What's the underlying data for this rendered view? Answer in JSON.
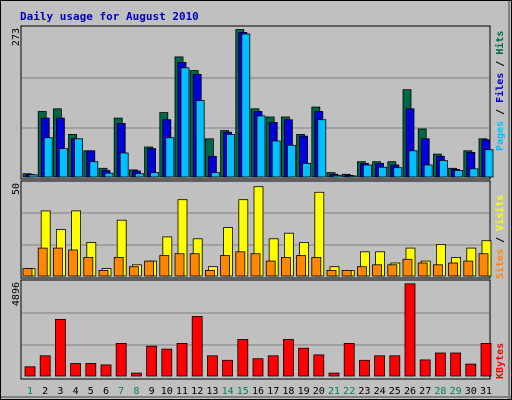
{
  "title": "Daily usage for August 2010",
  "colors": {
    "hits": "#006848",
    "files": "#0000d8",
    "pages": "#00c0ff",
    "visits": "#ffff00",
    "sites": "#ff8800",
    "kbytes": "#ff0000",
    "weekday": "#000000",
    "weekend": "#00805c"
  },
  "chart_data": {
    "type": "bar",
    "categories": [
      "1",
      "2",
      "3",
      "4",
      "5",
      "6",
      "7",
      "8",
      "9",
      "10",
      "11",
      "12",
      "13",
      "14",
      "15",
      "16",
      "17",
      "18",
      "19",
      "20",
      "21",
      "22",
      "23",
      "24",
      "25",
      "26",
      "27",
      "28",
      "29",
      "30",
      "31"
    ],
    "weekend_days": [
      "1",
      "7",
      "8",
      "14",
      "15",
      "21",
      "22",
      "28",
      "29"
    ],
    "panels": [
      {
        "name": "top",
        "ymax": "273",
        "ylim": [
          0,
          273
        ],
        "side_label": {
          "hits": "Hits",
          "files": "Files",
          "pages": "Pages",
          "sep": " / "
        },
        "series": [
          {
            "name": "Hits",
            "values": [
              6,
              120,
              125,
              78,
              48,
              16,
              108,
              13,
              55,
              118,
              220,
              195,
              70,
              85,
              270,
              125,
              110,
              110,
              78,
              128,
              8,
              5,
              28,
              28,
              28,
              160,
              88,
              42,
              16,
              48,
              70
            ]
          },
          {
            "name": "Files",
            "values": [
              5,
              108,
              108,
              70,
              48,
              12,
              98,
              11,
              52,
              105,
              210,
              188,
              38,
              82,
              265,
              120,
              100,
              105,
              75,
              120,
              5,
              3,
              25,
              25,
              22,
              125,
              70,
              38,
              14,
              45,
              68
            ]
          },
          {
            "name": "Pages",
            "values": [
              4,
              72,
              52,
              70,
              28,
              7,
              44,
              6,
              8,
              72,
              200,
              140,
              8,
              78,
              262,
              112,
              66,
              58,
              25,
              105,
              3,
              2,
              22,
              18,
              17,
              48,
              22,
              30,
              12,
              15,
              50
            ]
          }
        ]
      },
      {
        "name": "middle",
        "ymax": "50",
        "ylim": [
          0,
          50
        ],
        "side_label": {
          "visits": "Visits",
          "sites": "Sites",
          "sep": " / "
        },
        "series": [
          {
            "name": "Visits",
            "values": [
              4,
              35,
              25,
              35,
              18,
              4,
              30,
              6,
              8,
              21,
              41,
              20,
              5,
              26,
              41,
              48,
              20,
              23,
              18,
              45,
              5,
              3,
              13,
              13,
              7,
              15,
              8,
              17,
              10,
              15,
              19
            ]
          },
          {
            "name": "Sites",
            "values": [
              4,
              15,
              15,
              14,
              10,
              3,
              10,
              5,
              8,
              11,
              12,
              12,
              3,
              11,
              13,
              12,
              8,
              10,
              11,
              10,
              3,
              3,
              5,
              6,
              6,
              9,
              7,
              6,
              7,
              8,
              12
            ]
          }
        ]
      },
      {
        "name": "bottom",
        "ymax": "4896",
        "ylim": [
          0,
          4896
        ],
        "side_label": {
          "kbytes": "KBytes"
        },
        "series": [
          {
            "name": "KBytes",
            "values": [
              480,
              1050,
              2950,
              650,
              650,
              580,
              1700,
              150,
              1550,
              1400,
              1700,
              3100,
              1050,
              820,
              1900,
              900,
              1050,
              1900,
              1450,
              1100,
              150,
              1700,
              820,
              1050,
              1050,
              4800,
              840,
              1200,
              1200,
              620,
              1700
            ]
          }
        ]
      }
    ]
  }
}
